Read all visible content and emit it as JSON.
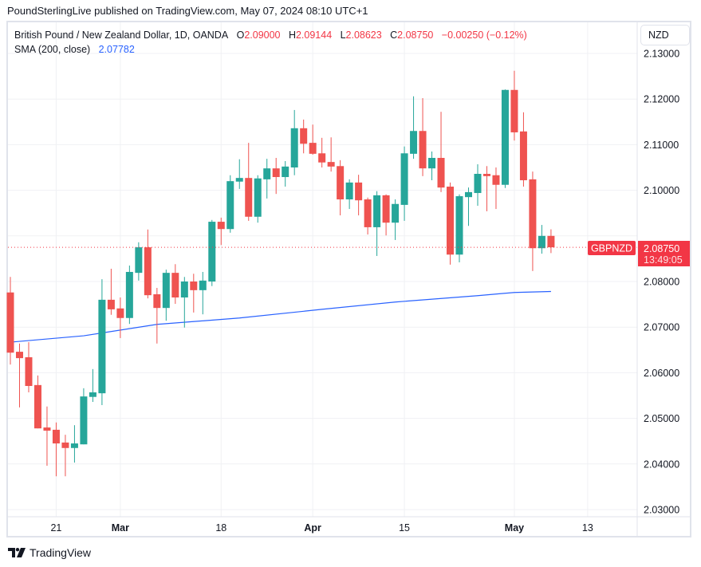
{
  "published": "PoundSterlingLive published on TradingView.com, May 07, 2024 08:10 UTC+1",
  "legend": {
    "symbol": "British Pound / New Zealand Dollar, 1D, OANDA",
    "o_label": "O",
    "o": "2.09000",
    "h_label": "H",
    "h": "2.09144",
    "l_label": "L",
    "l": "2.08623",
    "c_label": "C",
    "c": "2.08750",
    "change": "−0.00250 (−0.12%)",
    "sma_label": "SMA (200, close)",
    "sma_value": "2.07782"
  },
  "currency": "NZD",
  "price_label": {
    "symbol": "GBPNZD",
    "price": "2.08750",
    "countdown": "13:49:05"
  },
  "brand": "TradingView",
  "colors": {
    "up": "#26a69a",
    "down": "#ef5350",
    "sma": "#2962ff",
    "grid": "#f0f1f4",
    "last_price": "#f23645"
  },
  "chart_data": {
    "type": "candlestick",
    "ylim": [
      2.025,
      2.137
    ],
    "grid": true,
    "yticks": [
      "2.13000",
      "2.12000",
      "2.11000",
      "2.10000",
      "2.09000",
      "2.08000",
      "2.07000",
      "2.06000",
      "2.05000",
      "2.04000",
      "2.03000"
    ],
    "xticks": [
      {
        "date": "2024-02-21",
        "label": "21",
        "bold": false
      },
      {
        "date": "2024-03-01",
        "label": "Mar",
        "bold": true
      },
      {
        "date": "2024-03-18",
        "label": "18",
        "bold": false
      },
      {
        "date": "2024-04-01",
        "label": "Apr",
        "bold": true
      },
      {
        "date": "2024-04-15",
        "label": "15",
        "bold": false
      },
      {
        "date": "2024-05-01",
        "label": "May",
        "bold": true
      },
      {
        "date": "2024-05-13",
        "label": "13",
        "bold": false
      }
    ],
    "candles_format": [
      "date",
      "open",
      "high",
      "low",
      "close"
    ],
    "candles": [
      [
        "2024-02-14",
        2.0776,
        2.081,
        2.0618,
        2.0644
      ],
      [
        "2024-02-15",
        2.0646,
        2.0664,
        2.0524,
        2.0632
      ],
      [
        "2024-02-16",
        2.0634,
        2.0667,
        2.0557,
        2.0571
      ],
      [
        "2024-02-19",
        2.0573,
        2.0594,
        2.0478,
        2.0478
      ],
      [
        "2024-02-20",
        2.048,
        2.0526,
        2.0396,
        2.0473
      ],
      [
        "2024-02-21",
        2.0475,
        2.0491,
        2.0373,
        2.0445
      ],
      [
        "2024-02-22",
        2.0447,
        2.0464,
        2.0373,
        2.0435
      ],
      [
        "2024-02-23",
        2.0435,
        2.0485,
        2.0403,
        2.0445
      ],
      [
        "2024-02-26",
        2.0443,
        2.0566,
        2.0443,
        2.0548
      ],
      [
        "2024-02-27",
        2.0547,
        2.0608,
        2.0536,
        2.0557
      ],
      [
        "2024-02-28",
        2.0555,
        2.0805,
        2.0529,
        2.076
      ],
      [
        "2024-02-29",
        2.076,
        2.0828,
        2.0727,
        2.0739
      ],
      [
        "2024-03-01",
        2.0741,
        2.0765,
        2.0676,
        2.072
      ],
      [
        "2024-03-04",
        2.072,
        2.0835,
        2.0707,
        2.0821
      ],
      [
        "2024-03-05",
        2.0819,
        2.0886,
        2.0802,
        2.0875
      ],
      [
        "2024-03-06",
        2.0875,
        2.0914,
        2.0763,
        2.077
      ],
      [
        "2024-03-07",
        2.0772,
        2.0786,
        2.0664,
        2.0742
      ],
      [
        "2024-03-08",
        2.0742,
        2.0826,
        2.0714,
        2.0819
      ],
      [
        "2024-03-11",
        2.0819,
        2.0838,
        2.0751,
        2.0765
      ],
      [
        "2024-03-12",
        2.0765,
        2.081,
        2.0699,
        2.08
      ],
      [
        "2024-03-13",
        2.08,
        2.0817,
        2.0732,
        2.0781
      ],
      [
        "2024-03-14",
        2.0781,
        2.0821,
        2.0728,
        2.0802
      ],
      [
        "2024-03-15",
        2.08,
        2.0935,
        2.079,
        2.0931
      ],
      [
        "2024-03-18",
        2.0931,
        2.094,
        2.088,
        2.0915
      ],
      [
        "2024-03-19",
        2.0915,
        2.1033,
        2.0907,
        2.102
      ],
      [
        "2024-03-20",
        2.1019,
        2.1068,
        2.1003,
        2.1027
      ],
      [
        "2024-03-21",
        2.1027,
        2.1104,
        2.0933,
        2.0942
      ],
      [
        "2024-03-22",
        2.0942,
        2.1033,
        2.0929,
        2.1026
      ],
      [
        "2024-03-25",
        2.1024,
        2.1069,
        2.0982,
        2.1048
      ],
      [
        "2024-03-26",
        2.1048,
        2.1071,
        2.0992,
        2.1029
      ],
      [
        "2024-03-27",
        2.1029,
        2.1064,
        2.1008,
        2.1052
      ],
      [
        "2024-03-28",
        2.105,
        2.1176,
        2.1033,
        2.1136
      ],
      [
        "2024-03-29",
        2.1136,
        2.1155,
        2.1081,
        2.1102
      ],
      [
        "2024-04-01",
        2.1104,
        2.1144,
        2.1078,
        2.108
      ],
      [
        "2024-04-02",
        2.1081,
        2.1115,
        2.105,
        2.1061
      ],
      [
        "2024-04-03",
        2.1062,
        2.1116,
        2.1041,
        2.1052
      ],
      [
        "2024-04-04",
        2.1053,
        2.1066,
        2.0945,
        2.098
      ],
      [
        "2024-04-05",
        2.098,
        2.1024,
        2.0959,
        2.1017
      ],
      [
        "2024-04-08",
        2.1017,
        2.1034,
        2.0945,
        2.0978
      ],
      [
        "2024-04-09",
        2.098,
        2.0984,
        2.0903,
        2.0919
      ],
      [
        "2024-04-10",
        2.0919,
        2.0998,
        2.0856,
        2.0989
      ],
      [
        "2024-04-11",
        2.0989,
        2.0991,
        2.0901,
        2.0929
      ],
      [
        "2024-04-12",
        2.0929,
        2.098,
        2.0891,
        2.097
      ],
      [
        "2024-04-15",
        2.0968,
        2.1096,
        2.0933,
        2.1081
      ],
      [
        "2024-04-16",
        2.108,
        2.1206,
        2.1069,
        2.113
      ],
      [
        "2024-04-17",
        2.113,
        2.1202,
        2.1031,
        2.1048
      ],
      [
        "2024-04-18",
        2.1048,
        2.1085,
        2.1022,
        2.1071
      ],
      [
        "2024-04-19",
        2.1071,
        2.1172,
        2.0996,
        2.1006
      ],
      [
        "2024-04-22",
        2.1008,
        2.1017,
        2.0837,
        2.0859
      ],
      [
        "2024-04-23",
        2.0859,
        2.0991,
        2.0842,
        2.0987
      ],
      [
        "2024-04-24",
        2.0985,
        2.1006,
        2.0922,
        2.0996
      ],
      [
        "2024-04-25",
        2.0994,
        2.1057,
        2.0966,
        2.1036
      ],
      [
        "2024-04-26",
        2.1036,
        2.1053,
        2.0954,
        2.1031
      ],
      [
        "2024-04-29",
        2.1033,
        2.105,
        2.0959,
        2.1012
      ],
      [
        "2024-04-30",
        2.1012,
        2.1221,
        2.1005,
        2.122
      ],
      [
        "2024-05-01",
        2.122,
        2.1262,
        2.1109,
        2.1127
      ],
      [
        "2024-05-02",
        2.1129,
        2.1171,
        2.1008,
        2.1022
      ],
      [
        "2024-05-03",
        2.1024,
        2.1041,
        2.0823,
        2.0873
      ],
      [
        "2024-05-06",
        2.0873,
        2.0924,
        2.0861,
        2.09
      ],
      [
        "2024-05-07",
        2.09,
        2.09144,
        2.08623,
        2.0875
      ]
    ],
    "sma": {
      "name": "SMA (200, close)",
      "points": [
        [
          "2024-02-14",
          2.0667
        ],
        [
          "2024-02-26",
          2.0681
        ],
        [
          "2024-03-07",
          2.0706
        ],
        [
          "2024-03-20",
          2.072
        ],
        [
          "2024-04-02",
          2.0739
        ],
        [
          "2024-04-12",
          2.0755
        ],
        [
          "2024-04-25",
          2.0769
        ],
        [
          "2024-05-01",
          2.0776
        ],
        [
          "2024-05-07",
          2.07782
        ]
      ]
    },
    "last_price": 2.0875
  }
}
